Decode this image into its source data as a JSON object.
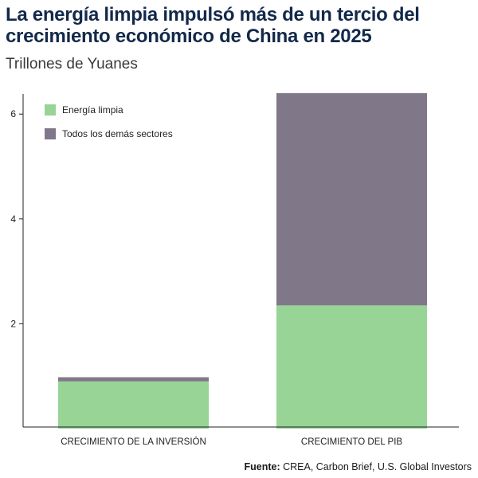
{
  "title": "La energía limpia impulsó más de un tercio del crecimiento económico de China en 2025",
  "subtitle": "Trillones de Yuanes",
  "source": {
    "label": "Fuente:",
    "text": "CREA, Carbon Brief, U.S. Global Investors"
  },
  "colors": {
    "clean": "#97d496",
    "other": "#807889",
    "title": "#13294b"
  },
  "chart_data": {
    "type": "bar",
    "stacked": true,
    "title": "La energía limpia impulsó más de un tercio del crecimiento económico de China en 2025",
    "ylabel": "Trillones de Yuanes",
    "xlabel": "",
    "categories": [
      "CRECIMIENTO DE LA INVERSIÓN",
      "CRECIMIENTO DEL PIB"
    ],
    "series": [
      {
        "name": "Energía limpia",
        "values": [
          0.9,
          2.35
        ]
      },
      {
        "name": "Todos los demás sectores",
        "values": [
          0.08,
          4.05
        ]
      }
    ],
    "yticks": [
      2,
      4,
      6
    ],
    "ylim": [
      0,
      6.4
    ],
    "grid": false,
    "legend_position": "top-left"
  }
}
